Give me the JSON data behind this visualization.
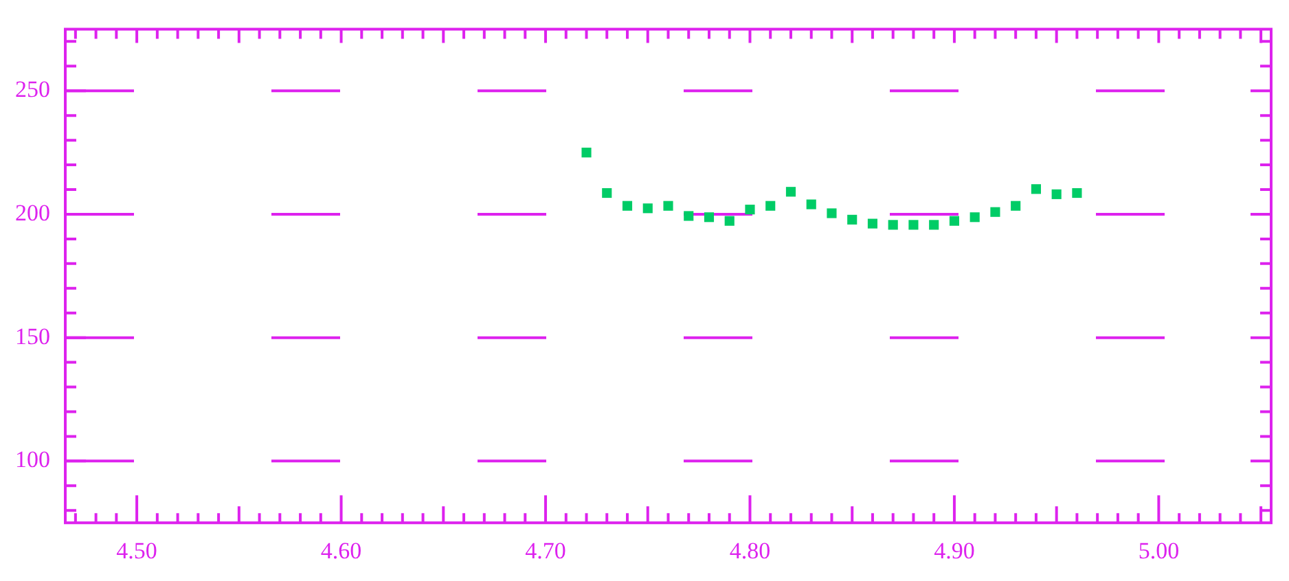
{
  "chart_data": {
    "type": "scatter",
    "x": [
      4.72,
      4.73,
      4.74,
      4.75,
      4.76,
      4.77,
      4.78,
      4.79,
      4.8,
      4.81,
      4.82,
      4.83,
      4.84,
      4.85,
      4.86,
      4.87,
      4.88,
      4.89,
      4.9,
      4.91,
      4.92,
      4.93,
      4.94,
      4.95,
      4.96
    ],
    "series": [
      {
        "color": "#00cc66",
        "values": [
          225,
          208.6,
          203.4,
          202.4,
          203.4,
          199.3,
          198.8,
          197.3,
          201.9,
          203.4,
          209.1,
          204,
          200.4,
          197.8,
          196.2,
          195.7,
          195.7,
          195.7,
          197.3,
          198.8,
          200.9,
          203.4,
          210.2,
          208.1,
          208.6
        ]
      }
    ],
    "xlim": [
      4.465,
      5.055
    ],
    "xticks": [
      {
        "value": 4.47,
        "label": null
      },
      {
        "value": 4.48,
        "label": null
      },
      {
        "value": 4.49,
        "label": null
      },
      {
        "value": 4.5,
        "label": "4.50"
      },
      {
        "value": 4.51,
        "label": null
      },
      {
        "value": 4.52,
        "label": null
      },
      {
        "value": 4.53,
        "label": null
      },
      {
        "value": 4.54,
        "label": null
      },
      {
        "value": 4.55,
        "label": null
      },
      {
        "value": 4.56,
        "label": null
      },
      {
        "value": 4.57,
        "label": null
      },
      {
        "value": 4.58,
        "label": null
      },
      {
        "value": 4.59,
        "label": null
      },
      {
        "value": 4.6,
        "label": "4.60"
      },
      {
        "value": 4.61,
        "label": null
      },
      {
        "value": 4.62,
        "label": null
      },
      {
        "value": 4.63,
        "label": null
      },
      {
        "value": 4.64,
        "label": null
      },
      {
        "value": 4.65,
        "label": null
      },
      {
        "value": 4.66,
        "label": null
      },
      {
        "value": 4.67,
        "label": null
      },
      {
        "value": 4.68,
        "label": null
      },
      {
        "value": 4.69,
        "label": null
      },
      {
        "value": 4.7,
        "label": "4.70"
      },
      {
        "value": 4.71,
        "label": null
      },
      {
        "value": 4.72,
        "label": null
      },
      {
        "value": 4.73,
        "label": null
      },
      {
        "value": 4.74,
        "label": null
      },
      {
        "value": 4.75,
        "label": null
      },
      {
        "value": 4.76,
        "label": null
      },
      {
        "value": 4.77,
        "label": null
      },
      {
        "value": 4.78,
        "label": null
      },
      {
        "value": 4.79,
        "label": null
      },
      {
        "value": 4.8,
        "label": "4.80"
      },
      {
        "value": 4.81,
        "label": null
      },
      {
        "value": 4.82,
        "label": null
      },
      {
        "value": 4.83,
        "label": null
      },
      {
        "value": 4.84,
        "label": null
      },
      {
        "value": 4.85,
        "label": null
      },
      {
        "value": 4.86,
        "label": null
      },
      {
        "value": 4.87,
        "label": null
      },
      {
        "value": 4.88,
        "label": null
      },
      {
        "value": 4.89,
        "label": null
      },
      {
        "value": 4.9,
        "label": "4.90"
      },
      {
        "value": 4.91,
        "label": null
      },
      {
        "value": 4.92,
        "label": null
      },
      {
        "value": 4.93,
        "label": null
      },
      {
        "value": 4.94,
        "label": null
      },
      {
        "value": 4.95,
        "label": null
      },
      {
        "value": 4.96,
        "label": null
      },
      {
        "value": 4.97,
        "label": null
      },
      {
        "value": 4.98,
        "label": null
      },
      {
        "value": 4.99,
        "label": null
      },
      {
        "value": 5.0,
        "label": "5.00"
      },
      {
        "value": 5.01,
        "label": null
      },
      {
        "value": 5.02,
        "label": null
      },
      {
        "value": 5.03,
        "label": null
      },
      {
        "value": 5.04,
        "label": null
      },
      {
        "value": 5.05,
        "label": null
      }
    ],
    "ylim": [
      75,
      275
    ],
    "yticks": [
      {
        "value": 80,
        "label": null
      },
      {
        "value": 90,
        "label": null
      },
      100,
      {
        "value": 110,
        "label": null
      },
      {
        "value": 120,
        "label": null
      },
      {
        "value": 130,
        "label": null
      },
      {
        "value": 140,
        "label": null
      },
      150,
      {
        "value": 160,
        "label": null
      },
      {
        "value": 170,
        "label": null
      },
      {
        "value": 180,
        "label": null
      },
      {
        "value": 190,
        "label": null
      },
      200,
      {
        "value": 210,
        "label": null
      },
      {
        "value": 220,
        "label": null
      },
      {
        "value": 230,
        "label": null
      },
      {
        "value": 240,
        "label": null
      },
      250,
      {
        "value": 260,
        "label": null
      },
      {
        "value": 270,
        "label": null
      }
    ],
    "grid": "y",
    "marker": "square",
    "legend": false
  }
}
